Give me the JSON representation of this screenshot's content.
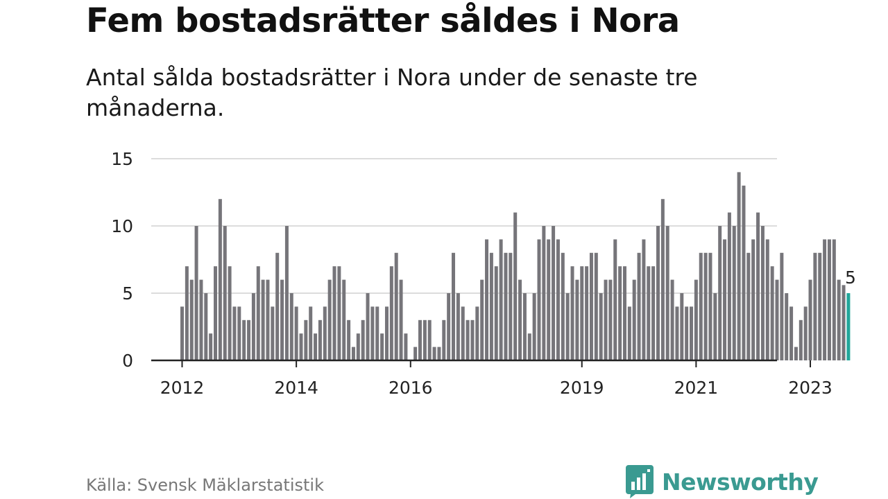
{
  "title": "Fem bostadsrätter såldes i Nora",
  "subtitle": "Antal sålda bostadsrätter i Nora under de senaste tre månaderna.",
  "source": "Källa: Svensk Mäklarstatistik",
  "brand": "Newsworthy",
  "colors": {
    "bar": "#76757a",
    "highlight": "#21a69a",
    "brand": "#3a9a91",
    "grid": "#dcdcdc",
    "axis": "#222222"
  },
  "chart_data": {
    "type": "bar",
    "title": "Fem bostadsrätter såldes i Nora",
    "xlabel": "",
    "ylabel": "",
    "ylim": [
      0,
      15
    ],
    "yticks": [
      0,
      5,
      10,
      15
    ],
    "grid": true,
    "x_start": "2012-01",
    "xtick_labels": [
      "2012",
      "2014",
      "2016",
      "2019",
      "2021",
      "2023"
    ],
    "xtick_months": [
      "2012-01",
      "2014-01",
      "2016-01",
      "2019-01",
      "2021-01",
      "2023-01"
    ],
    "values": [
      4,
      7,
      6,
      10,
      6,
      5,
      2,
      7,
      12,
      10,
      7,
      4,
      4,
      3,
      3,
      5,
      7,
      6,
      6,
      4,
      8,
      6,
      10,
      5,
      4,
      2,
      3,
      4,
      2,
      3,
      4,
      6,
      7,
      7,
      6,
      3,
      1,
      2,
      3,
      5,
      4,
      4,
      2,
      4,
      7,
      8,
      6,
      2,
      0,
      1,
      3,
      3,
      3,
      1,
      1,
      3,
      5,
      8,
      5,
      4,
      3,
      3,
      4,
      6,
      9,
      8,
      7,
      9,
      8,
      8,
      11,
      6,
      5,
      2,
      5,
      9,
      10,
      9,
      10,
      9,
      8,
      5,
      7,
      6,
      7,
      7,
      8,
      8,
      5,
      6,
      6,
      9,
      7,
      7,
      4,
      6,
      8,
      9,
      7,
      7,
      10,
      12,
      10,
      6,
      4,
      5,
      4,
      4,
      6,
      8,
      8,
      8,
      5,
      10,
      9,
      11,
      10,
      14,
      13,
      8,
      9,
      11,
      10,
      9,
      7,
      6,
      8,
      5,
      4,
      1,
      3,
      4,
      6,
      8,
      8,
      9,
      9,
      9,
      6,
      5.6,
      5
    ],
    "highlight_last": true,
    "last_label": "5"
  }
}
